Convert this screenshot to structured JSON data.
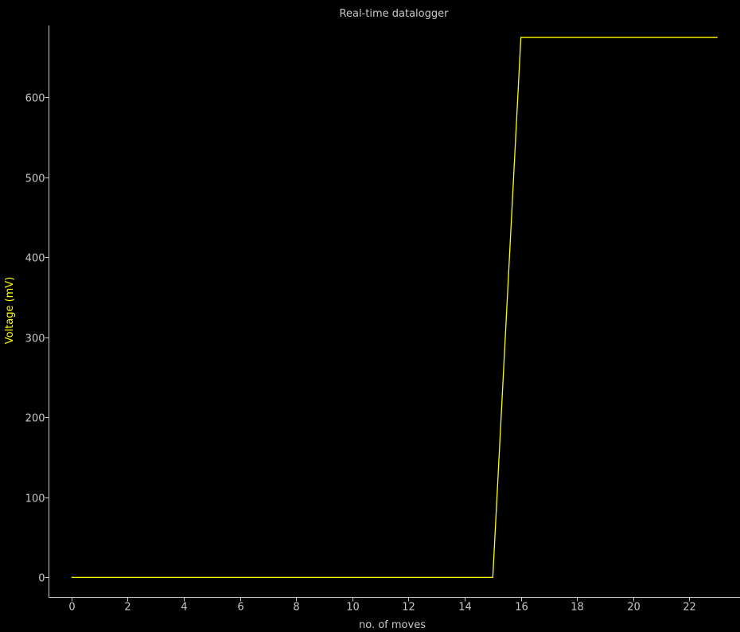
{
  "chart_data": {
    "type": "line",
    "title": "Real-time datalogger",
    "xlabel": "no. of moves",
    "ylabel": "Voltage (mV)",
    "xlim": [
      -0.8,
      23.8
    ],
    "ylim": [
      -25,
      690
    ],
    "xticks": [
      0,
      2,
      4,
      6,
      8,
      10,
      12,
      14,
      16,
      18,
      20,
      22
    ],
    "yticks": [
      0,
      100,
      200,
      300,
      400,
      500,
      600
    ],
    "grid": false,
    "series": [
      {
        "x": [
          0,
          1,
          2,
          3,
          4,
          5,
          6,
          7,
          8,
          9,
          10,
          11,
          12,
          13,
          14,
          15,
          16,
          17,
          18,
          19,
          20,
          21,
          22,
          23
        ],
        "y": [
          0,
          0,
          0,
          0,
          0,
          0,
          0,
          0,
          0,
          0,
          0,
          0,
          0,
          0,
          0,
          0,
          675,
          675,
          675,
          675,
          675,
          675,
          675,
          675
        ]
      }
    ]
  },
  "colors": {
    "background": "#000000",
    "axis": "#c8c8c8",
    "text": "#c8c8c8",
    "series": "#ffff00",
    "ylabel": "#ffff00"
  }
}
